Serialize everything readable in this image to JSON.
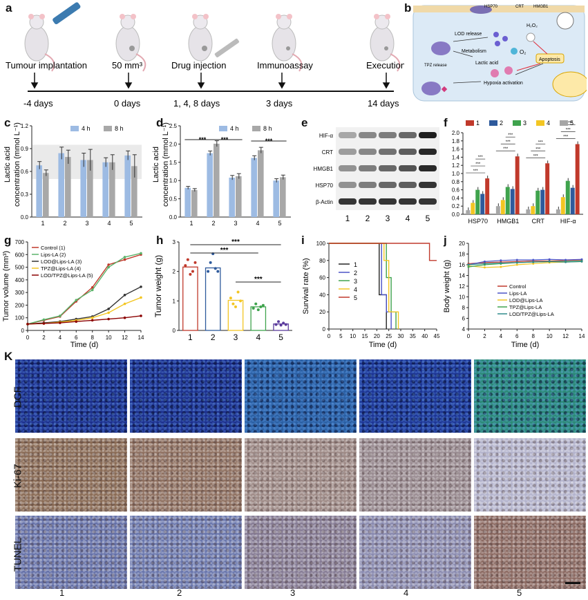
{
  "panels": {
    "a": "a",
    "b": "b",
    "c": "c",
    "d": "d",
    "e": "e",
    "f": "f",
    "g": "g",
    "h": "h",
    "i": "i",
    "j": "j",
    "K": "K"
  },
  "timeline": {
    "events": [
      {
        "label": "Tumour implantation",
        "day": "-4 days"
      },
      {
        "label": "50 mm³",
        "day": "0 days"
      },
      {
        "label": "Drug injection",
        "day": "1, 4, 8 days"
      },
      {
        "label": "Immunoassay",
        "day": "3 days"
      },
      {
        "label": "Execution",
        "day": "14 days"
      }
    ]
  },
  "mechanism": {
    "labels": {
      "hsp70": "HSP70",
      "crt": "CRT",
      "hmgb1": "HMGB1",
      "lod_release": "LOD release",
      "h2o2": "H₂O₂",
      "metabolism": "Metabolism",
      "o2": "O₂",
      "lactic": "Lactic acid",
      "apoptosis": "Apoptosis",
      "tpz_release": "TPZ release",
      "hypoxia": "Hypoxia activation"
    }
  },
  "chart_data": [
    {
      "panel": "c",
      "type": "bar",
      "ylabel": "Lactic acid concentration (mmol L⁻¹)",
      "categories": [
        "1",
        "2",
        "3",
        "4",
        "5"
      ],
      "ylim": [
        0,
        1.2
      ],
      "yticks": [
        0.0,
        0.3,
        0.6,
        0.9,
        1.2
      ],
      "legend": "top",
      "series": [
        {
          "name": "4 h",
          "values": [
            0.68,
            0.84,
            0.75,
            0.72,
            0.81
          ],
          "errors": [
            0.05,
            0.08,
            0.09,
            0.06,
            0.06
          ]
        },
        {
          "name": "8 h",
          "values": [
            0.58,
            0.79,
            0.75,
            0.72,
            0.67
          ],
          "errors": [
            0.04,
            0.09,
            0.14,
            0.1,
            0.15
          ]
        }
      ]
    },
    {
      "panel": "d",
      "type": "bar",
      "ylabel": "Lactic acid concentration (mmol L⁻¹)",
      "categories": [
        "1",
        "2",
        "3",
        "4",
        "5"
      ],
      "ylim": [
        0,
        2.5
      ],
      "yticks": [
        0.0,
        0.5,
        1.0,
        1.5,
        2.0,
        2.5
      ],
      "legend": "top",
      "significance": [
        "***",
        "***",
        "***"
      ],
      "series": [
        {
          "name": "4 h",
          "values": [
            0.8,
            1.75,
            1.08,
            1.62,
            1.0
          ],
          "errors": [
            0.04,
            0.06,
            0.06,
            0.06,
            0.05
          ]
        },
        {
          "name": "8 h",
          "values": [
            0.74,
            2.01,
            1.12,
            1.83,
            1.09
          ],
          "errors": [
            0.04,
            0.08,
            0.07,
            0.08,
            0.06
          ]
        }
      ]
    },
    {
      "panel": "e",
      "type": "table",
      "rows": [
        "HIF-α",
        "CRT",
        "HMGB1",
        "HSP70",
        "β-Actin"
      ],
      "columns": [
        "1",
        "2",
        "3",
        "4",
        "5"
      ],
      "intensity": [
        [
          0.3,
          0.45,
          0.5,
          0.6,
          0.95
        ],
        [
          0.35,
          0.45,
          0.55,
          0.65,
          0.9
        ],
        [
          0.4,
          0.5,
          0.6,
          0.7,
          0.9
        ],
        [
          0.4,
          0.5,
          0.6,
          0.65,
          0.85
        ],
        [
          0.85,
          0.85,
          0.85,
          0.85,
          0.85
        ]
      ]
    },
    {
      "panel": "f",
      "type": "bar",
      "categories": [
        "HSP70",
        "HMGB1",
        "CRT",
        "HIF-α"
      ],
      "ylim": [
        0,
        2.0
      ],
      "yticks": [
        0.0,
        0.2,
        0.4,
        0.6,
        0.8,
        1.0,
        1.2,
        1.4,
        1.6,
        1.8,
        2.0
      ],
      "legend": "top",
      "significance": "***",
      "series": [
        {
          "name": "1",
          "color": "#c0392b",
          "values": [
            0.88,
            1.42,
            1.25,
            1.72
          ]
        },
        {
          "name": "2",
          "color": "#2e5a9c",
          "values": [
            0.5,
            0.62,
            0.6,
            0.65
          ]
        },
        {
          "name": "3",
          "color": "#3fa34d",
          "values": [
            0.6,
            0.67,
            0.58,
            0.82
          ]
        },
        {
          "name": "4",
          "color": "#f3c623",
          "values": [
            0.28,
            0.35,
            0.2,
            0.42
          ]
        },
        {
          "name": "5",
          "color": "#a6a6a6",
          "values": [
            0.1,
            0.2,
            0.12,
            0.12
          ]
        }
      ]
    },
    {
      "panel": "g",
      "type": "line",
      "xlabel": "Time (d)",
      "ylabel": "Tumor volume (mm³)",
      "x": [
        0,
        2,
        4,
        6,
        8,
        10,
        12,
        14
      ],
      "xlim": [
        0,
        14
      ],
      "ylim": [
        0,
        700
      ],
      "yticks": [
        0,
        100,
        200,
        300,
        400,
        500,
        600,
        700
      ],
      "legend": "top-left",
      "series": [
        {
          "name": "Control (1)",
          "color": "#c0392b",
          "values": [
            50,
            80,
            110,
            230,
            340,
            520,
            560,
            600
          ]
        },
        {
          "name": "Lips-LA (2)",
          "color": "#5bb36a",
          "values": [
            50,
            85,
            115,
            240,
            320,
            500,
            580,
            610
          ]
        },
        {
          "name": "LOD@Lips-LA (3)",
          "color": "#333333",
          "values": [
            50,
            60,
            70,
            90,
            110,
            170,
            280,
            345
          ]
        },
        {
          "name": "TPZ@Lips-LA (4)",
          "color": "#f3c623",
          "values": [
            50,
            55,
            65,
            80,
            100,
            140,
            210,
            260
          ]
        },
        {
          "name": "LOD/TPZ@Lips-LA (5)",
          "color": "#8b0000",
          "values": [
            50,
            55,
            60,
            70,
            80,
            90,
            100,
            115
          ]
        }
      ]
    },
    {
      "panel": "h",
      "type": "bar",
      "ylabel": "Tumor weight (g)",
      "categories": [
        "1",
        "2",
        "3",
        "4",
        "5"
      ],
      "ylim": [
        0,
        3
      ],
      "yticks": [
        0,
        1,
        2,
        3
      ],
      "significance": [
        "***",
        "***",
        "***"
      ],
      "colors": [
        "#c0392b",
        "#2e5a9c",
        "#f3c623",
        "#3fa34d",
        "#5b3b9c"
      ],
      "values": [
        2.15,
        2.12,
        1.02,
        0.8,
        0.22
      ],
      "points": [
        [
          2.2,
          2.4,
          1.9,
          2.0,
          2.3
        ],
        [
          2.0,
          2.3,
          2.6,
          2.1,
          2.0
        ],
        [
          1.1,
          0.9,
          0.8,
          1.3,
          1.0
        ],
        [
          0.75,
          0.9,
          0.7,
          0.8,
          0.85
        ],
        [
          0.2,
          0.3,
          0.18,
          0.25,
          0.2
        ]
      ]
    },
    {
      "panel": "i",
      "type": "line",
      "xlabel": "Time (d)",
      "ylabel": "Survival rate (%)",
      "xlim": [
        0,
        45
      ],
      "xticks": [
        0,
        5,
        10,
        15,
        20,
        25,
        30,
        35,
        40,
        45
      ],
      "ylim": [
        0,
        100
      ],
      "yticks": [
        0,
        20,
        40,
        60,
        80,
        100
      ],
      "legend": "center",
      "series": [
        {
          "name": "1",
          "color": "#222222",
          "steps": [
            [
              0,
              100
            ],
            [
              21,
              100
            ],
            [
              21,
              40
            ],
            [
              24,
              40
            ],
            [
              24,
              0
            ]
          ]
        },
        {
          "name": "2",
          "color": "#4b53c6",
          "steps": [
            [
              0,
              100
            ],
            [
              22,
              100
            ],
            [
              22,
              40
            ],
            [
              24,
              40
            ],
            [
              24,
              20
            ],
            [
              26,
              20
            ],
            [
              26,
              0
            ]
          ]
        },
        {
          "name": "3",
          "color": "#3fa34d",
          "steps": [
            [
              0,
              100
            ],
            [
              24,
              100
            ],
            [
              24,
              60
            ],
            [
              26,
              60
            ],
            [
              26,
              20
            ],
            [
              28,
              20
            ],
            [
              28,
              0
            ]
          ]
        },
        {
          "name": "4",
          "color": "#f3c623",
          "steps": [
            [
              0,
              100
            ],
            [
              23,
              100
            ],
            [
              23,
              80
            ],
            [
              25,
              80
            ],
            [
              25,
              20
            ],
            [
              29,
              20
            ],
            [
              29,
              0
            ]
          ]
        },
        {
          "name": "5",
          "color": "#c0392b",
          "steps": [
            [
              0,
              100
            ],
            [
              42,
              100
            ],
            [
              42,
              80
            ],
            [
              45,
              80
            ]
          ]
        }
      ]
    },
    {
      "panel": "j",
      "type": "line",
      "xlabel": "Time (d)",
      "ylabel": "Body weight (g)",
      "x": [
        0,
        2,
        4,
        6,
        8,
        10,
        12,
        14
      ],
      "xlim": [
        0,
        14
      ],
      "ylim": [
        4,
        20
      ],
      "yticks": [
        4,
        6,
        8,
        10,
        12,
        14,
        16,
        18,
        20
      ],
      "legend": "bottom-right",
      "series": [
        {
          "name": "Control",
          "color": "#c0392b",
          "values": [
            16.2,
            16.4,
            16.5,
            16.6,
            16.7,
            16.7,
            16.8,
            16.9
          ]
        },
        {
          "name": "Lips-LA",
          "color": "#4b53c6",
          "values": [
            16.0,
            16.6,
            16.8,
            16.9,
            16.9,
            17.0,
            16.9,
            17.0
          ]
        },
        {
          "name": "LOD@Lips-LA",
          "color": "#f3c623",
          "values": [
            15.8,
            15.5,
            15.6,
            16.0,
            16.2,
            16.4,
            16.5,
            16.6
          ]
        },
        {
          "name": "TPZ@Lips-LA",
          "color": "#3fa34d",
          "values": [
            15.6,
            16.0,
            16.2,
            16.4,
            16.5,
            16.6,
            16.6,
            16.7
          ]
        },
        {
          "name": "LOD/TPZ@Lips-LA",
          "color": "#2e8b8b",
          "values": [
            16.0,
            16.2,
            16.3,
            16.4,
            16.5,
            16.6,
            16.5,
            16.6
          ]
        }
      ]
    }
  ],
  "microscopy": {
    "rows": [
      "DCF",
      "Ki-67",
      "TUNEL"
    ],
    "columns": [
      "1",
      "2",
      "3",
      "4",
      "5"
    ],
    "colors": {
      "dcf": [
        "#1c2f8c",
        "#1c2f8c",
        "#2a5fa3",
        "#1d3594",
        "#2b8a76"
      ],
      "ki67": [
        "#8a6b55",
        "#8f7060",
        "#9e8a86",
        "#9a8c92",
        "#b4b4cd"
      ],
      "tunel": [
        "#6470a8",
        "#6a77ad",
        "#867c95",
        "#8a8bb0",
        "#8c6a62"
      ]
    }
  }
}
